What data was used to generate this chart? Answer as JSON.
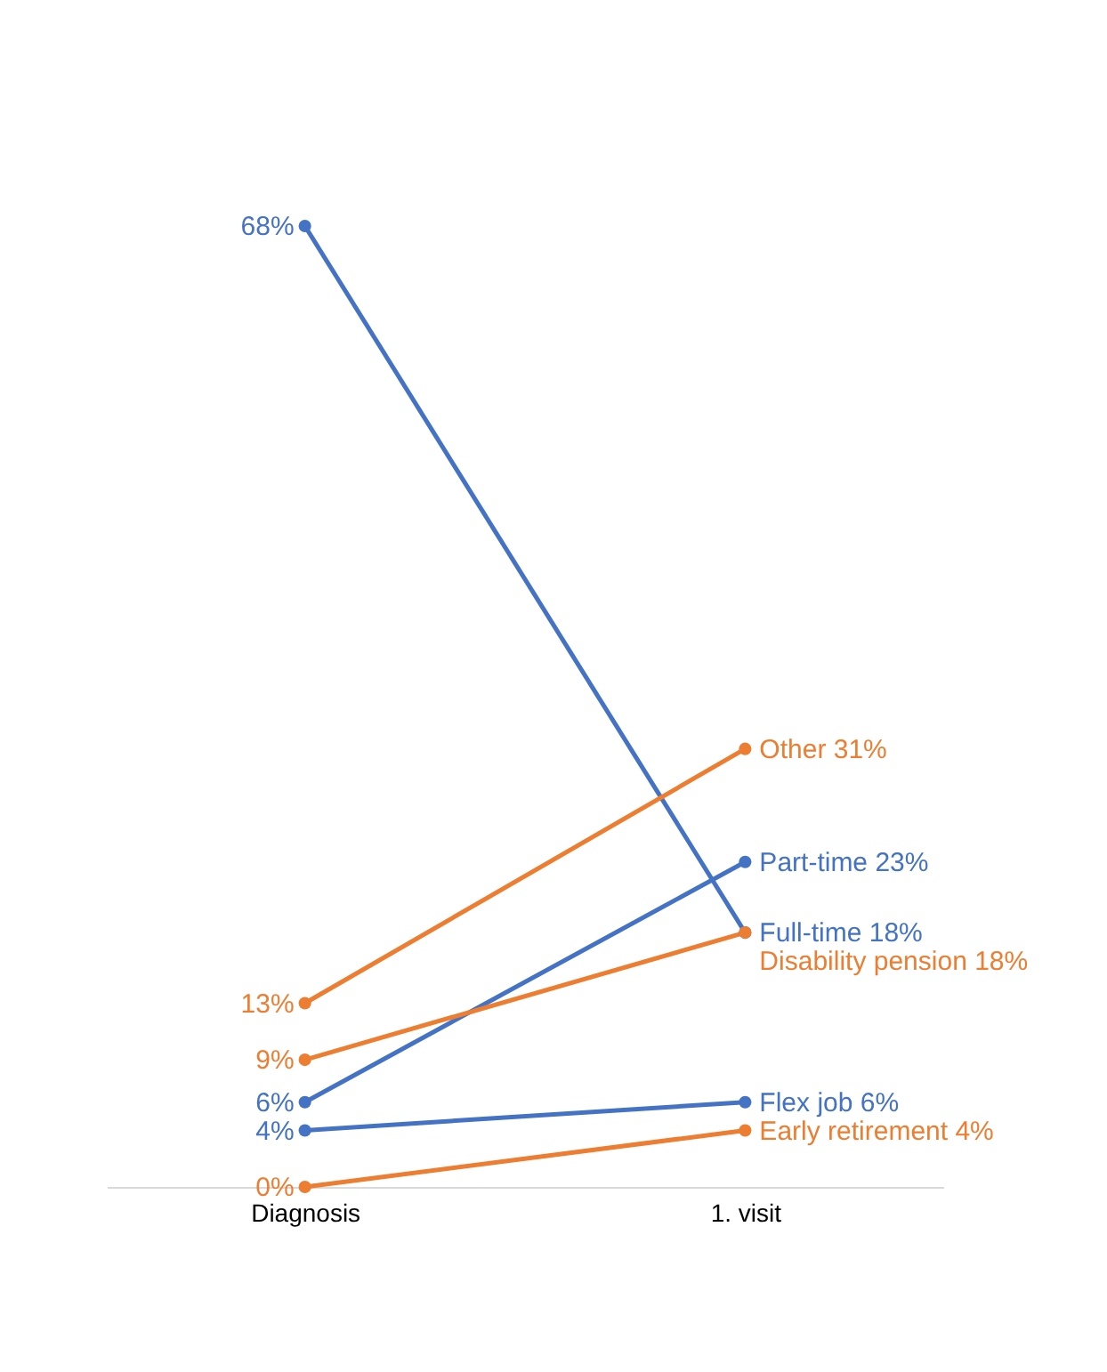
{
  "chart_data": {
    "type": "line",
    "categories": [
      "Diagnosis",
      "1. visit"
    ],
    "marker": "circle",
    "legend": false,
    "grid": false,
    "tick_labels": "x",
    "series": [
      {
        "name": "Full-time",
        "color": "#4472c4",
        "values": [
          68,
          18
        ],
        "value_labels": [
          "68%",
          "18%"
        ]
      },
      {
        "name": "Part-time",
        "color": "#4472c4",
        "values": [
          6,
          23
        ],
        "value_labels": [
          "6%",
          "23%"
        ]
      },
      {
        "name": "Flex job",
        "color": "#4472c4",
        "values": [
          4,
          6
        ],
        "value_labels": [
          "4%",
          "6%"
        ]
      },
      {
        "name": "Other",
        "color": "#ed7d31",
        "values": [
          13,
          31
        ],
        "value_labels": [
          "13%",
          "31%"
        ]
      },
      {
        "name": "Disability pension",
        "color": "#ed7d31",
        "values": [
          9,
          18
        ],
        "value_labels": [
          "9%",
          "18%"
        ]
      },
      {
        "name": "Early retirement",
        "color": "#ed7d31",
        "values": [
          0,
          4
        ],
        "value_labels": [
          "0%",
          "4%"
        ]
      }
    ]
  }
}
